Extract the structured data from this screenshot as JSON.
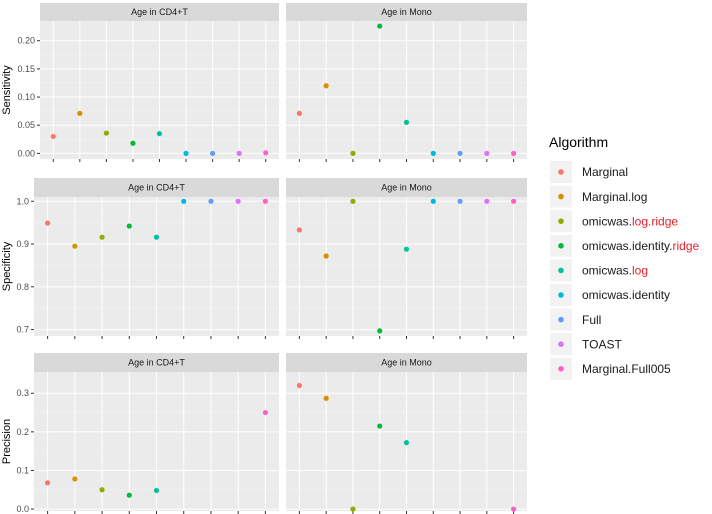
{
  "chart_data": {
    "type": "scatter",
    "facet_rows": [
      {
        "ylabel": "Sensitivity",
        "ylim": [
          -0.01,
          0.235
        ],
        "yticks": [
          0.0,
          0.05,
          0.1,
          0.15,
          0.2
        ],
        "yticklabels": [
          "0.00",
          "0.05",
          "0.10",
          "0.15",
          "0.20"
        ]
      },
      {
        "ylabel": "Specificity",
        "ylim": [
          0.685,
          1.01
        ],
        "yticks": [
          0.7,
          0.8,
          0.9,
          1.0
        ],
        "yticklabels": [
          "0.7",
          "0.8",
          "0.9",
          "1.0"
        ]
      },
      {
        "ylabel": "Precision",
        "ylim": [
          -0.005,
          0.355
        ],
        "yticks": [
          0.0,
          0.1,
          0.2,
          0.3
        ],
        "yticklabels": [
          "0.0",
          "0.1",
          "0.2",
          "0.3"
        ]
      }
    ],
    "facet_columns": [
      "Age in CD4+T",
      "Age in Mono"
    ],
    "categories": [
      "Marginal",
      "Marginal.log",
      "omicwas.log.ridge",
      "omicwas.identity.ridge",
      "omicwas.log",
      "omicwas.identity",
      "Full",
      "TOAST",
      "Marginal.Full005"
    ],
    "colors": [
      "#F8766D",
      "#D39200",
      "#93AA00",
      "#00BA38",
      "#00C19F",
      "#00B9E3",
      "#619CFF",
      "#DB72FB",
      "#FF61C3"
    ],
    "panels": [
      {
        "row": 0,
        "col": 0,
        "values": [
          0.03,
          0.071,
          0.036,
          0.018,
          0.035,
          0.0,
          0.0,
          0.0,
          0.001
        ]
      },
      {
        "row": 0,
        "col": 1,
        "values": [
          0.071,
          0.12,
          0.0,
          0.226,
          0.055,
          0.0,
          0.0,
          0.0,
          0.0
        ]
      },
      {
        "row": 1,
        "col": 0,
        "values": [
          0.949,
          0.895,
          0.916,
          0.942,
          0.916,
          1.0,
          1.0,
          1.0,
          1.0
        ]
      },
      {
        "row": 1,
        "col": 1,
        "values": [
          0.933,
          0.872,
          1.0,
          0.697,
          0.888,
          1.0,
          1.0,
          1.0,
          1.0
        ]
      },
      {
        "row": 2,
        "col": 0,
        "values": [
          0.068,
          0.078,
          0.05,
          0.036,
          0.048,
          null,
          null,
          null,
          0.25
        ]
      },
      {
        "row": 2,
        "col": 1,
        "values": [
          0.32,
          0.287,
          0.0,
          0.215,
          0.172,
          null,
          null,
          null,
          0.0
        ]
      }
    ],
    "legend": {
      "title": "Algorithm",
      "position": "right",
      "entries": [
        {
          "parts": [
            {
              "text": "Marginal",
              "accent": false
            }
          ]
        },
        {
          "parts": [
            {
              "text": "Marginal.log",
              "accent": false
            }
          ]
        },
        {
          "parts": [
            {
              "text": "omicwas.",
              "accent": false
            },
            {
              "text": "log.ridge",
              "accent": true
            }
          ]
        },
        {
          "parts": [
            {
              "text": "omicwas.identity.",
              "accent": false
            },
            {
              "text": "ridge",
              "accent": true
            }
          ]
        },
        {
          "parts": [
            {
              "text": "omicwas.",
              "accent": false
            },
            {
              "text": "log",
              "accent": true
            }
          ]
        },
        {
          "parts": [
            {
              "text": "omicwas.identity",
              "accent": false
            }
          ]
        },
        {
          "parts": [
            {
              "text": "Full",
              "accent": false
            }
          ]
        },
        {
          "parts": [
            {
              "text": "TOAST",
              "accent": false
            }
          ]
        },
        {
          "parts": [
            {
              "text": "Marginal.Full005",
              "accent": false
            }
          ]
        }
      ],
      "accent_color": "#e8202a"
    },
    "grid": true,
    "xlabel": ""
  }
}
